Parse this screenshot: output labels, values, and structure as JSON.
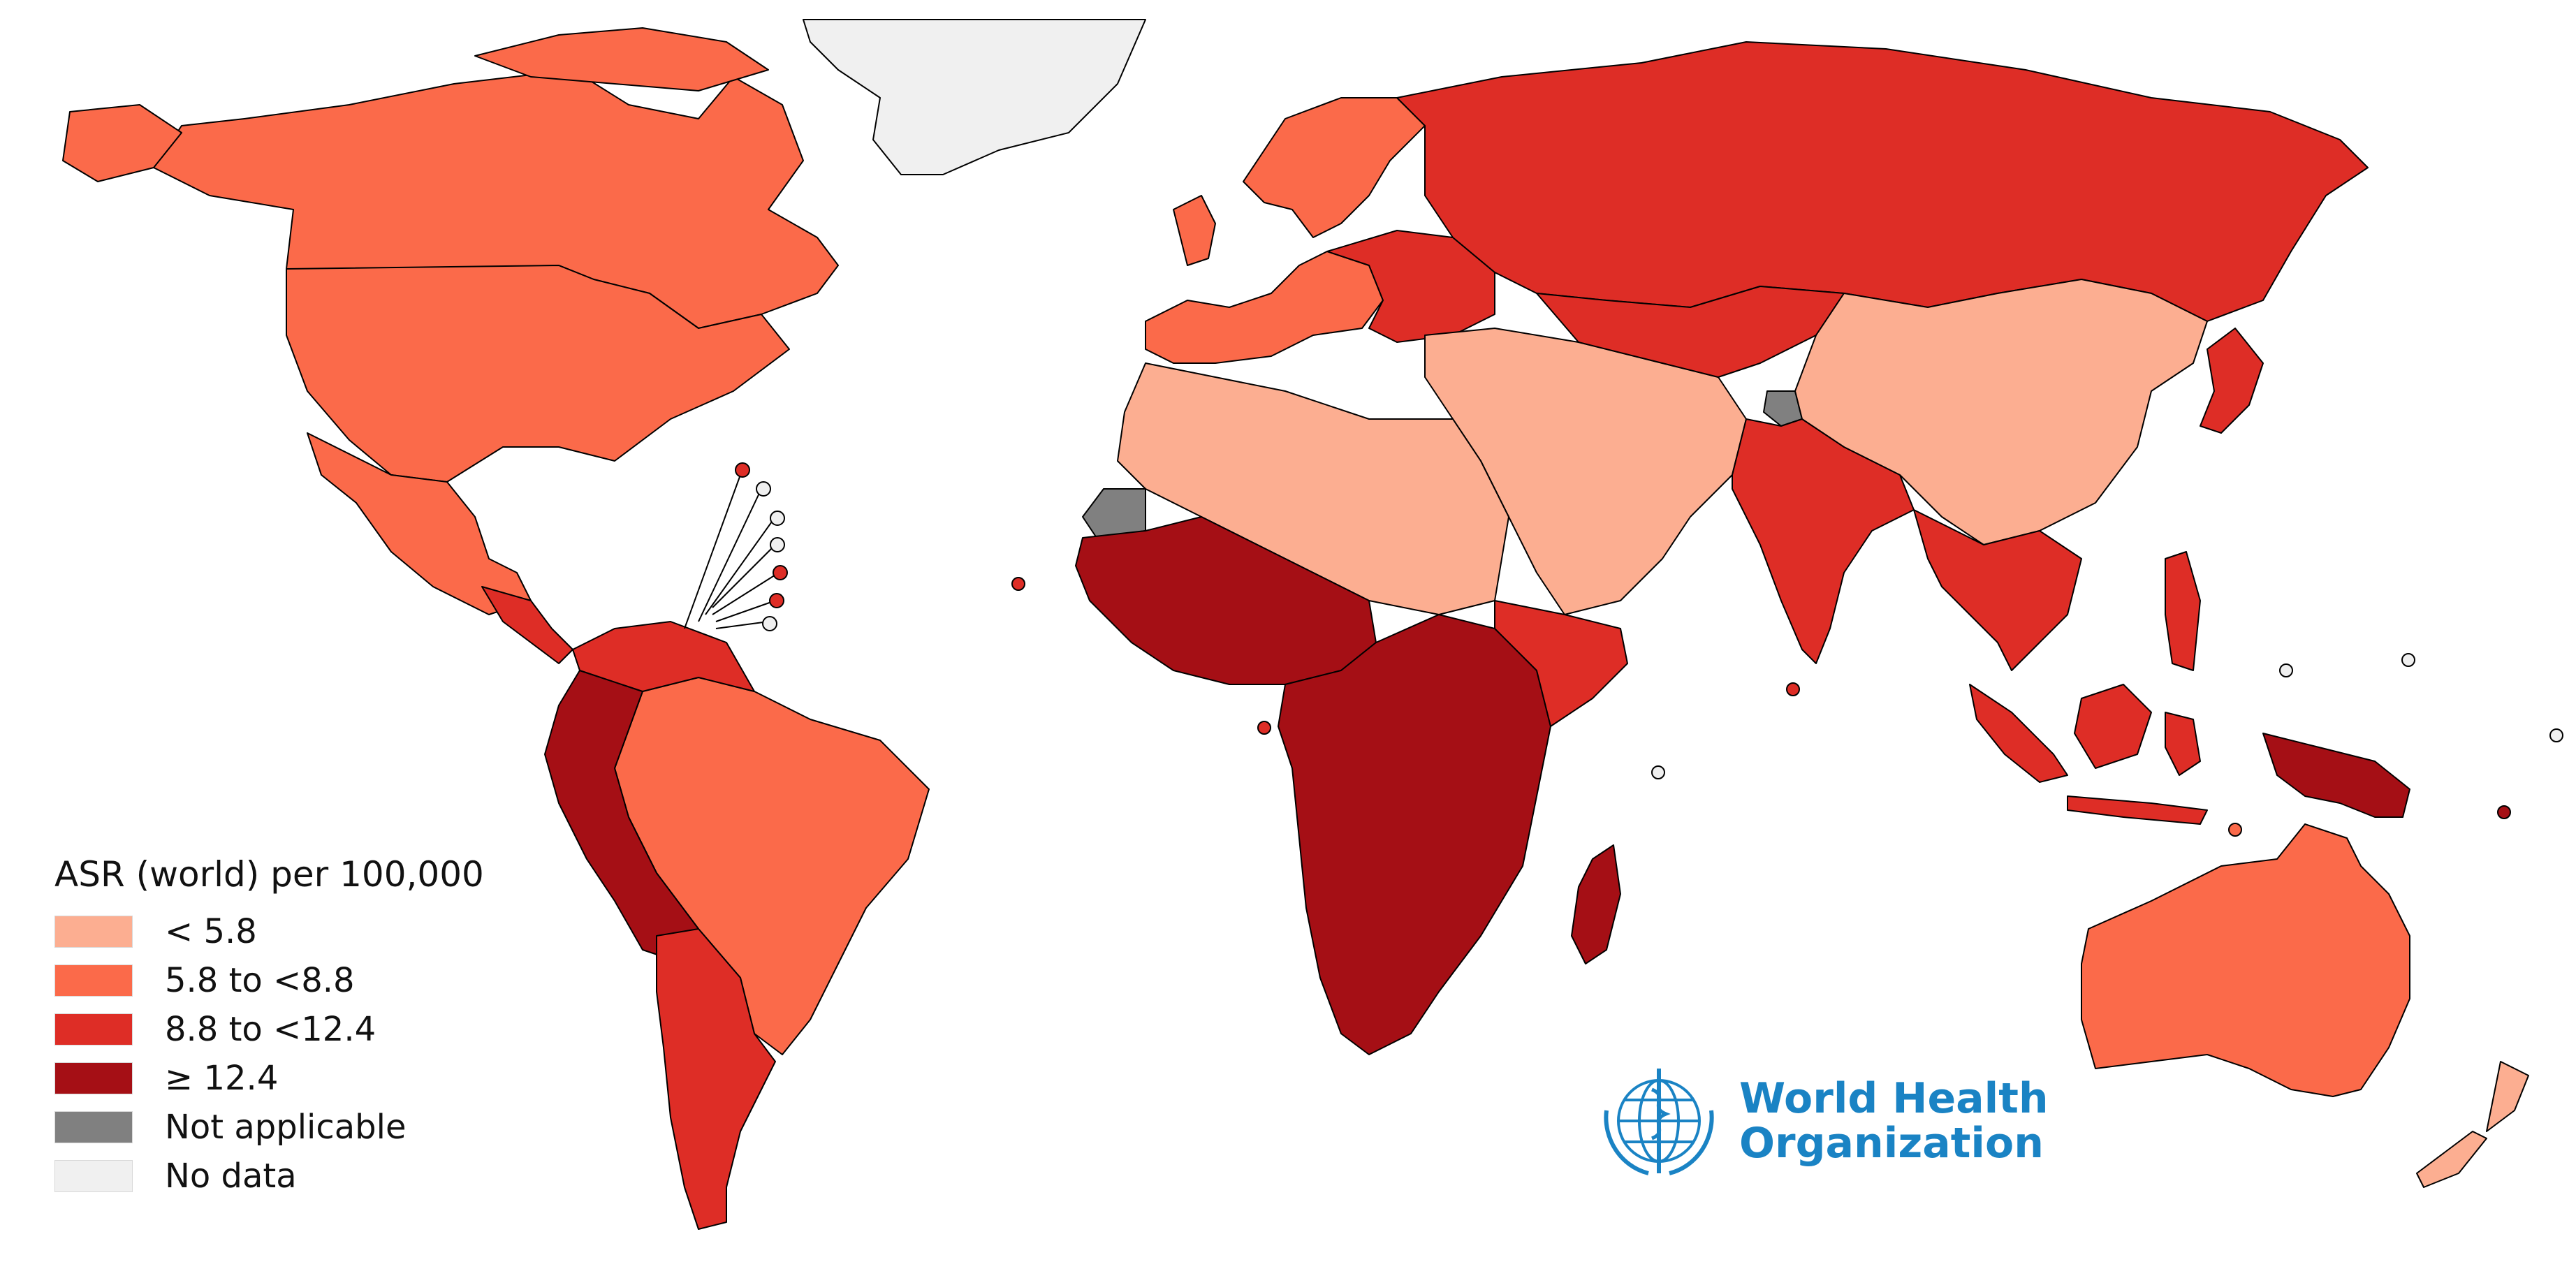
{
  "colors": {
    "lt_5_8": "#fcae91",
    "5_8_to_8_8": "#fb6a4a",
    "8_8_to_12_4": "#de2d26",
    "ge_12_4": "#a50f15",
    "not_applicable": "#808080",
    "no_data": "#f0f0f0",
    "water": "#ffffff",
    "border": "#000000"
  },
  "legend": {
    "title": "ASR (world) per 100,000",
    "items": [
      {
        "label": "< 5.8",
        "color": "#fcae91"
      },
      {
        "label": "5.8 to <8.8",
        "color": "#fb6a4a"
      },
      {
        "label": "8.8 to <12.4",
        "color": "#de2d26"
      },
      {
        "label": "≥ 12.4",
        "color": "#a50f15"
      },
      {
        "label": "Not applicable",
        "color": "#808080"
      },
      {
        "label": "No data",
        "color": "#f0f0f0"
      }
    ]
  },
  "logo": {
    "line1": "World Health",
    "line2": "Organization",
    "color": "#1a83c4",
    "icon": "who-emblem-icon"
  },
  "regions": [
    {
      "name": "Greenland",
      "class": "no_data"
    },
    {
      "name": "Canada",
      "class": "5_8_to_8_8"
    },
    {
      "name": "USA",
      "class": "5_8_to_8_8"
    },
    {
      "name": "Mexico",
      "class": "5_8_to_8_8"
    },
    {
      "name": "Central America",
      "class": "8_8_to_12_4"
    },
    {
      "name": "Brazil",
      "class": "5_8_to_8_8"
    },
    {
      "name": "Argentina",
      "class": "8_8_to_12_4"
    },
    {
      "name": "Bolivia",
      "class": "ge_12_4"
    },
    {
      "name": "Peru",
      "class": "ge_12_4"
    },
    {
      "name": "Europe",
      "class": "5_8_to_8_8"
    },
    {
      "name": "Eastern Europe",
      "class": "8_8_to_12_4"
    },
    {
      "name": "Russia",
      "class": "8_8_to_12_4"
    },
    {
      "name": "North Africa",
      "class": "lt_5_8"
    },
    {
      "name": "Western Sahara",
      "class": "not_applicable"
    },
    {
      "name": "West Africa",
      "class": "ge_12_4"
    },
    {
      "name": "Central & Southern Africa",
      "class": "ge_12_4"
    },
    {
      "name": "Horn of Africa",
      "class": "8_8_to_12_4"
    },
    {
      "name": "Madagascar",
      "class": "ge_12_4"
    },
    {
      "name": "Middle East",
      "class": "lt_5_8"
    },
    {
      "name": "Kashmir",
      "class": "not_applicable"
    },
    {
      "name": "India",
      "class": "8_8_to_12_4"
    },
    {
      "name": "China",
      "class": "lt_5_8"
    },
    {
      "name": "Southeast Asia",
      "class": "8_8_to_12_4"
    },
    {
      "name": "Indonesia",
      "class": "8_8_to_12_4"
    },
    {
      "name": "Papua New Guinea",
      "class": "ge_12_4"
    },
    {
      "name": "Japan",
      "class": "8_8_to_12_4"
    },
    {
      "name": "Australia",
      "class": "5_8_to_8_8"
    },
    {
      "name": "New Zealand",
      "class": "lt_5_8"
    }
  ]
}
